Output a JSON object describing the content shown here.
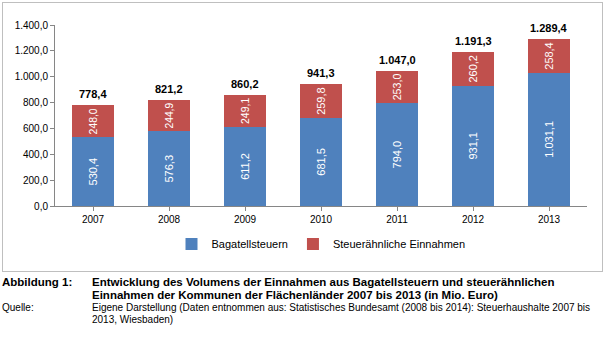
{
  "chart_data": {
    "type": "bar",
    "stacked": true,
    "categories": [
      "2007",
      "2008",
      "2009",
      "2010",
      "2011",
      "2012",
      "2013"
    ],
    "series": [
      {
        "name": "Bagatellsteuern",
        "color": "#4f81bd",
        "values": [
          530.4,
          576.3,
          611.2,
          681.5,
          794.0,
          931.1,
          1031.1
        ],
        "value_labels": [
          "530,4",
          "576,3",
          "611,2",
          "681,5",
          "794,0",
          "931,1",
          "1.031,1"
        ]
      },
      {
        "name": "Steuerähnliche Einnahmen",
        "color": "#c0504d",
        "values": [
          248.0,
          244.9,
          249.1,
          259.8,
          253.0,
          260.2,
          258.4
        ],
        "value_labels": [
          "248,0",
          "244,9",
          "249,1",
          "259,8",
          "253,0",
          "260,2",
          "258,4"
        ]
      }
    ],
    "annotations": [
      {
        "x": "2007",
        "text": "778,4"
      },
      {
        "x": "2008",
        "text": "821,2"
      },
      {
        "x": "2009",
        "text": "860,2"
      },
      {
        "x": "2010",
        "text": "941,3"
      },
      {
        "x": "2011",
        "text": "1.047,0"
      },
      {
        "x": "2012",
        "text": "1.191,3"
      },
      {
        "x": "2013",
        "text": "1.289,4"
      }
    ],
    "ylim": [
      0,
      1400
    ],
    "yticks": [
      {
        "value": 0,
        "label": "0,0"
      },
      {
        "value": 200,
        "label": "200,0"
      },
      {
        "value": 400,
        "label": "400,0"
      },
      {
        "value": 600,
        "label": "600,0"
      },
      {
        "value": 800,
        "label": "800,0"
      },
      {
        "value": 1000,
        "label": "1.000,0"
      },
      {
        "value": 1200,
        "label": "1.200,0"
      },
      {
        "value": 1400,
        "label": "1.400,0"
      }
    ],
    "grid": false,
    "data_labels": true,
    "legend": "bottom"
  },
  "figure_caption": {
    "label": "Abbildung 1:",
    "text": "Entwicklung des Volumens der Einnahmen aus Bagatellsteuern und steuerähnlichen Einnahmen der Kommunen der Flächenländer 2007 bis 2013 (in Mio. Euro)",
    "source_label": "Quelle:",
    "source_text": "Eigene Darstellung (Daten entnommen aus: Statistisches Bundesamt (2008 bis 2014): Steuerhaushalte 2007 bis 2013, Wiesbaden)"
  }
}
